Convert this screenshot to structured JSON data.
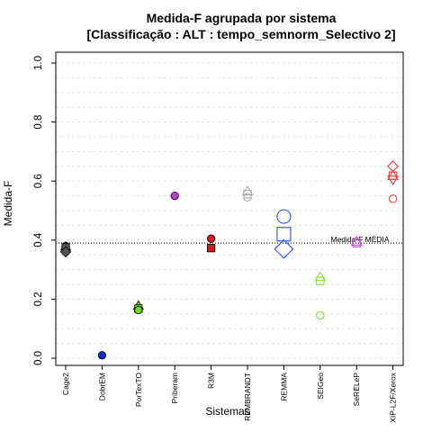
{
  "chart_data": {
    "type": "scatter",
    "title": "Medida-F agrupada por sistema",
    "subtitle": "[Classificação : ALT : tempo_semnorm_Selectivo 2]",
    "xlabel": "Sistemas",
    "ylabel": "Medida-F",
    "ylim": [
      0,
      1
    ],
    "yticks": [
      "0.0",
      "0.2",
      "0.4",
      "0.6",
      "0.8",
      "1.0"
    ],
    "grid": true,
    "categories": [
      "Cage2",
      "DobrEM",
      "PorTexTO",
      "Priberam",
      "R3M",
      "REMBRANDT",
      "REMMA",
      "SEIGeo",
      "SeRELeP",
      "XIP-L2F/Xerox"
    ],
    "mean_line": {
      "value": 0.39,
      "label": "Medida-F MÉDIA"
    },
    "series": [
      {
        "category": "Cage2",
        "color": "#555555",
        "points": [
          {
            "shape": "circle",
            "y": 0.38,
            "filled": true
          },
          {
            "shape": "triangle",
            "y": 0.378,
            "filled": true
          },
          {
            "shape": "square",
            "y": 0.375,
            "filled": true
          },
          {
            "shape": "diamond",
            "y": 0.36,
            "filled": true
          }
        ]
      },
      {
        "category": "DobrEM",
        "color": "#0a2ad8",
        "points": [
          {
            "shape": "circle",
            "y": 0.01,
            "filled": true
          }
        ]
      },
      {
        "category": "PorTexTO",
        "color": "#6fe01e",
        "points": [
          {
            "shape": "triangle",
            "y": 0.178,
            "filled": true
          },
          {
            "shape": "square",
            "y": 0.168,
            "filled": true
          },
          {
            "shape": "circle",
            "y": 0.163,
            "filled": true
          }
        ]
      },
      {
        "category": "Priberam",
        "color": "#c03bd8",
        "points": [
          {
            "shape": "circle",
            "y": 0.55,
            "filled": true
          }
        ]
      },
      {
        "category": "R3M",
        "color": "#d41e1e",
        "points": [
          {
            "shape": "circle",
            "y": 0.405,
            "filled": true
          },
          {
            "shape": "square",
            "y": 0.373,
            "filled": true
          }
        ]
      },
      {
        "category": "REMBRANDT",
        "color": "#b0b0b0",
        "points": [
          {
            "shape": "triangle",
            "y": 0.565,
            "filled": false
          },
          {
            "shape": "square",
            "y": 0.556,
            "filled": false
          },
          {
            "shape": "circle",
            "y": 0.545,
            "filled": false
          }
        ]
      },
      {
        "category": "REMMA",
        "color": "#3b5ef0",
        "points": [
          {
            "shape": "circle",
            "y": 0.48,
            "filled": false,
            "big": true
          },
          {
            "shape": "square",
            "y": 0.42,
            "filled": false,
            "big": true
          },
          {
            "shape": "diamond",
            "y": 0.37,
            "filled": false,
            "big": true
          }
        ]
      },
      {
        "category": "SEIGeo",
        "color": "#8fe04a",
        "points": [
          {
            "shape": "triangle",
            "y": 0.275,
            "filled": false
          },
          {
            "shape": "square",
            "y": 0.262,
            "filled": false
          },
          {
            "shape": "circle",
            "y": 0.145,
            "filled": false
          }
        ]
      },
      {
        "category": "SeRELeP",
        "color": "#c84ad8",
        "points": [
          {
            "shape": "square",
            "y": 0.39,
            "filled": false
          },
          {
            "shape": "triangle",
            "y": 0.395,
            "filled": false
          }
        ]
      },
      {
        "category": "XIP-L2F/Xerox",
        "color": "#e84848",
        "points": [
          {
            "shape": "diamond",
            "y": 0.65,
            "filled": false
          },
          {
            "shape": "square",
            "y": 0.618,
            "filled": false
          },
          {
            "shape": "triangle",
            "y": 0.618,
            "filled": false
          },
          {
            "shape": "triangle-down",
            "y": 0.605,
            "filled": false
          },
          {
            "shape": "circle",
            "y": 0.54,
            "filled": false
          }
        ]
      }
    ]
  }
}
